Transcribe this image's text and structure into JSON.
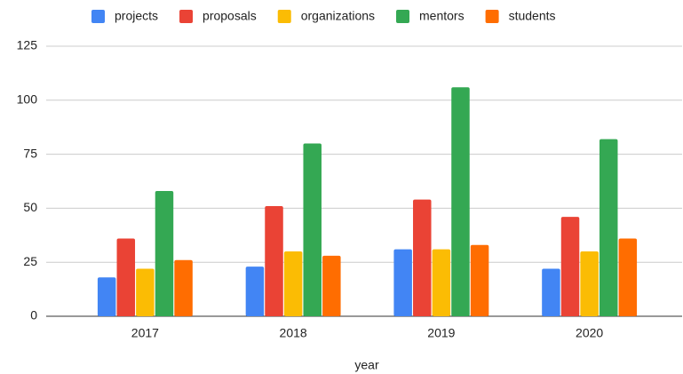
{
  "chart_data": {
    "type": "bar",
    "categories": [
      "2017",
      "2018",
      "2019",
      "2020"
    ],
    "series": [
      {
        "name": "projects",
        "color": "#4285f4",
        "values": [
          18,
          23,
          31,
          22
        ]
      },
      {
        "name": "proposals",
        "color": "#ea4335",
        "values": [
          36,
          51,
          54,
          46
        ]
      },
      {
        "name": "organizations",
        "color": "#fbbc04",
        "values": [
          22,
          30,
          31,
          30
        ]
      },
      {
        "name": "mentors",
        "color": "#34a853",
        "values": [
          58,
          80,
          106,
          82
        ]
      },
      {
        "name": "students",
        "color": "#ff6d01",
        "values": [
          26,
          28,
          33,
          36
        ]
      }
    ],
    "xlabel": "year",
    "ylim": [
      0,
      125
    ],
    "yticks": [
      0,
      25,
      50,
      75,
      100,
      125
    ],
    "grid": true,
    "legend": "top"
  }
}
